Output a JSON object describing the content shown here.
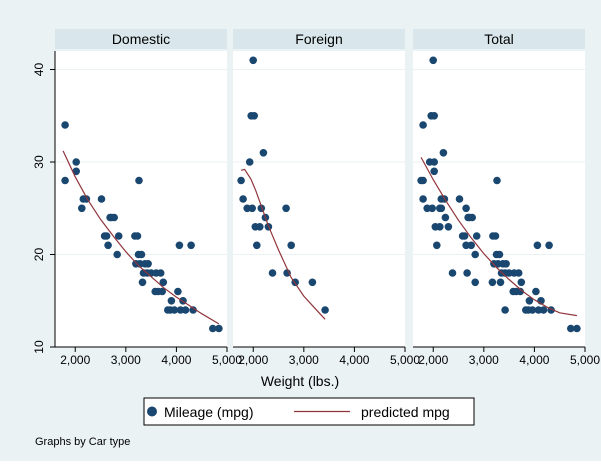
{
  "chart_data": {
    "type": "scatter",
    "xlabel": "Weight (lbs.)",
    "ylabel": "",
    "xlim": [
      1600,
      5000
    ],
    "ylim": [
      10,
      42
    ],
    "x_ticks": [
      2000,
      3000,
      4000,
      5000
    ],
    "x_tick_labels": [
      "2,000",
      "3,000",
      "4,000",
      "5,000"
    ],
    "y_ticks": [
      10,
      20,
      30,
      40
    ],
    "y_tick_labels": [
      "10",
      "20",
      "30",
      "40"
    ],
    "grid": true,
    "legend_position": "bottom",
    "note": "Graphs by Car type",
    "series_styles": {
      "points": {
        "name": "Mileage (mpg)",
        "color": "#1a476f"
      },
      "fit": {
        "name": "predicted mpg",
        "color": "#90353b"
      }
    },
    "panels": [
      {
        "title": "Domestic",
        "points": [
          [
            1800,
            34
          ],
          [
            1800,
            28
          ],
          [
            2020,
            30
          ],
          [
            2020,
            29
          ],
          [
            2130,
            25
          ],
          [
            2160,
            26
          ],
          [
            2220,
            26
          ],
          [
            2520,
            26
          ],
          [
            2580,
            22
          ],
          [
            2620,
            22
          ],
          [
            2650,
            21
          ],
          [
            2690,
            24
          ],
          [
            2720,
            24
          ],
          [
            2770,
            24
          ],
          [
            2830,
            20
          ],
          [
            2860,
            22
          ],
          [
            3180,
            22
          ],
          [
            3200,
            19
          ],
          [
            3230,
            22
          ],
          [
            3250,
            20
          ],
          [
            3260,
            28
          ],
          [
            3280,
            19
          ],
          [
            3310,
            20
          ],
          [
            3330,
            17
          ],
          [
            3350,
            18
          ],
          [
            3380,
            19
          ],
          [
            3420,
            18
          ],
          [
            3440,
            19
          ],
          [
            3500,
            18
          ],
          [
            3580,
            16
          ],
          [
            3600,
            18
          ],
          [
            3640,
            16
          ],
          [
            3690,
            18
          ],
          [
            3720,
            16
          ],
          [
            3740,
            17
          ],
          [
            3830,
            14
          ],
          [
            3880,
            14
          ],
          [
            3900,
            15
          ],
          [
            3960,
            14
          ],
          [
            4030,
            16
          ],
          [
            4060,
            21
          ],
          [
            4080,
            14
          ],
          [
            4130,
            15
          ],
          [
            4180,
            14
          ],
          [
            4330,
            14
          ],
          [
            4290,
            21
          ],
          [
            4720,
            12
          ],
          [
            4840,
            12
          ]
        ],
        "fit": [
          [
            1760,
            31.2
          ],
          [
            2000,
            28.4
          ],
          [
            2250,
            25.9
          ],
          [
            2500,
            23.8
          ],
          [
            2750,
            22.0
          ],
          [
            3000,
            20.3
          ],
          [
            3250,
            18.8
          ],
          [
            3500,
            17.6
          ],
          [
            3750,
            16.4
          ],
          [
            4000,
            15.4
          ],
          [
            4250,
            14.5
          ],
          [
            4500,
            13.6
          ],
          [
            4840,
            12.5
          ]
        ]
      },
      {
        "title": "Foreign",
        "points": [
          [
            1760,
            28
          ],
          [
            1800,
            26
          ],
          [
            1880,
            25
          ],
          [
            1930,
            30
          ],
          [
            1960,
            35
          ],
          [
            1980,
            25
          ],
          [
            2000,
            41
          ],
          [
            2020,
            35
          ],
          [
            2040,
            23
          ],
          [
            2070,
            21
          ],
          [
            2130,
            23
          ],
          [
            2160,
            25
          ],
          [
            2200,
            31
          ],
          [
            2240,
            24
          ],
          [
            2300,
            23
          ],
          [
            2380,
            18
          ],
          [
            2650,
            25
          ],
          [
            2670,
            18
          ],
          [
            2750,
            21
          ],
          [
            2830,
            17
          ],
          [
            3170,
            17
          ],
          [
            3420,
            14
          ]
        ],
        "fit": [
          [
            1760,
            29.1
          ],
          [
            1830,
            29.2
          ],
          [
            1950,
            28.2
          ],
          [
            2050,
            26.9
          ],
          [
            2150,
            25.4
          ],
          [
            2300,
            23.1
          ],
          [
            2500,
            20.5
          ],
          [
            2750,
            17.5
          ],
          [
            3000,
            15.5
          ],
          [
            3200,
            14.3
          ],
          [
            3420,
            13.0
          ]
        ]
      },
      {
        "title": "Total",
        "points": [
          [
            1760,
            28
          ],
          [
            1800,
            34
          ],
          [
            1800,
            28
          ],
          [
            1800,
            26
          ],
          [
            1880,
            25
          ],
          [
            1930,
            30
          ],
          [
            1960,
            35
          ],
          [
            1980,
            25
          ],
          [
            2000,
            41
          ],
          [
            2020,
            35
          ],
          [
            2020,
            30
          ],
          [
            2040,
            23
          ],
          [
            2070,
            21
          ],
          [
            2020,
            29
          ],
          [
            2130,
            23
          ],
          [
            2130,
            25
          ],
          [
            2160,
            26
          ],
          [
            2160,
            25
          ],
          [
            2200,
            31
          ],
          [
            2220,
            26
          ],
          [
            2240,
            24
          ],
          [
            2300,
            23
          ],
          [
            2380,
            18
          ],
          [
            2520,
            26
          ],
          [
            2580,
            22
          ],
          [
            2620,
            22
          ],
          [
            2650,
            21
          ],
          [
            2650,
            25
          ],
          [
            2670,
            18
          ],
          [
            2690,
            24
          ],
          [
            2720,
            24
          ],
          [
            2750,
            21
          ],
          [
            2770,
            24
          ],
          [
            2830,
            20
          ],
          [
            2830,
            17
          ],
          [
            2860,
            22
          ],
          [
            3170,
            17
          ],
          [
            3180,
            22
          ],
          [
            3200,
            19
          ],
          [
            3230,
            22
          ],
          [
            3250,
            20
          ],
          [
            3260,
            28
          ],
          [
            3280,
            19
          ],
          [
            3310,
            20
          ],
          [
            3330,
            17
          ],
          [
            3350,
            18
          ],
          [
            3380,
            19
          ],
          [
            3420,
            18
          ],
          [
            3420,
            14
          ],
          [
            3440,
            19
          ],
          [
            3500,
            18
          ],
          [
            3580,
            16
          ],
          [
            3600,
            18
          ],
          [
            3640,
            16
          ],
          [
            3690,
            18
          ],
          [
            3720,
            16
          ],
          [
            3740,
            17
          ],
          [
            3830,
            14
          ],
          [
            3880,
            14
          ],
          [
            3900,
            15
          ],
          [
            3960,
            14
          ],
          [
            4030,
            16
          ],
          [
            4060,
            21
          ],
          [
            4080,
            14
          ],
          [
            4130,
            15
          ],
          [
            4180,
            14
          ],
          [
            4290,
            21
          ],
          [
            4330,
            14
          ],
          [
            4720,
            12
          ],
          [
            4840,
            12
          ]
        ],
        "fit": [
          [
            1760,
            30.5
          ],
          [
            2000,
            28.1
          ],
          [
            2250,
            25.8
          ],
          [
            2500,
            23.7
          ],
          [
            2750,
            21.8
          ],
          [
            3000,
            20.1
          ],
          [
            3250,
            18.6
          ],
          [
            3500,
            17.3
          ],
          [
            3750,
            16.1
          ],
          [
            4000,
            15.1
          ],
          [
            4250,
            14.3
          ],
          [
            4500,
            13.7
          ],
          [
            4840,
            13.4
          ]
        ]
      }
    ]
  }
}
